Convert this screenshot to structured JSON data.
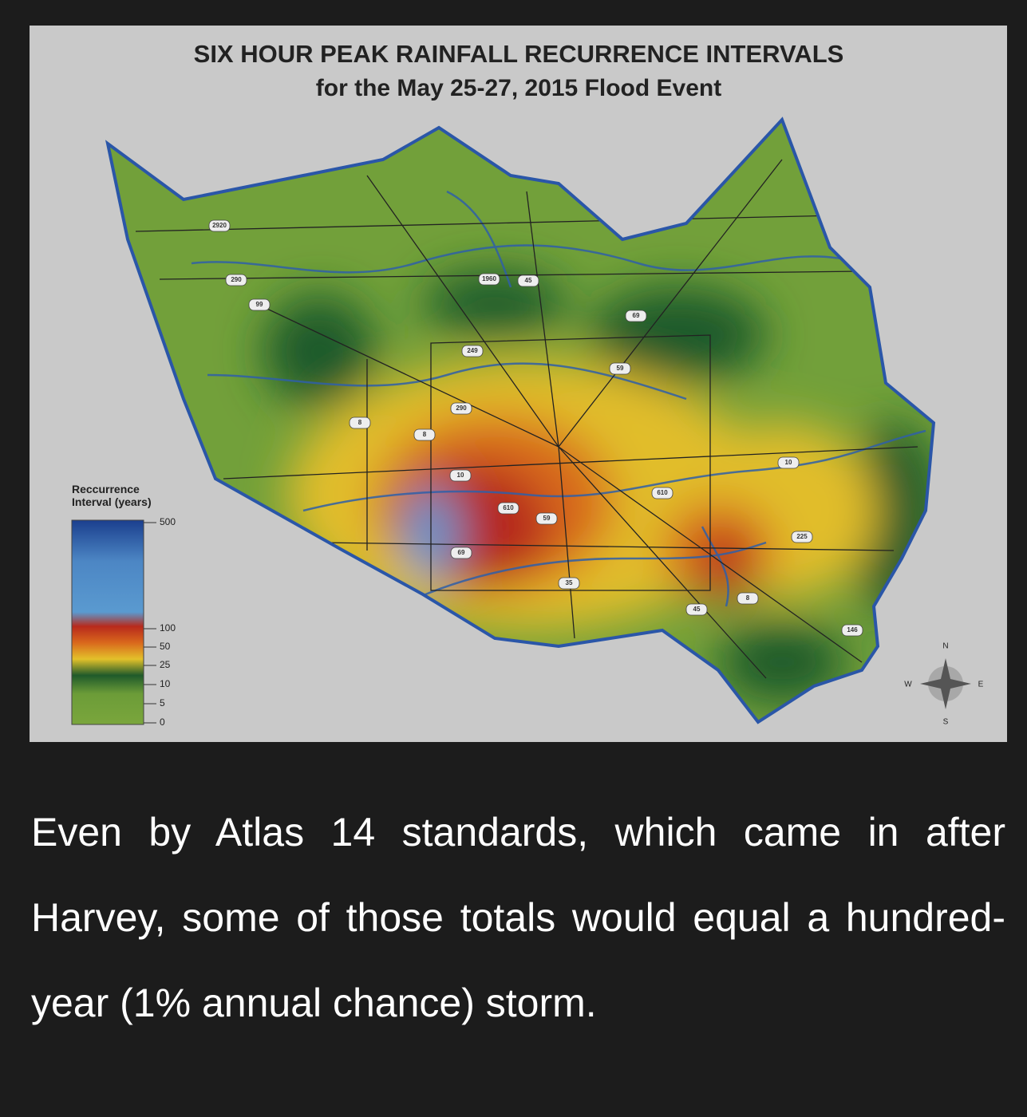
{
  "map": {
    "title": "SIX HOUR PEAK RAINFALL RECURRENCE INTERVALS",
    "subtitle": "for the May 25-27, 2015 Flood Event",
    "legend": {
      "title": "Reccurrence\nInterval (years)",
      "ticks": [
        "500",
        "100",
        "50",
        "25",
        "10",
        "5",
        "0"
      ]
    },
    "compass": {
      "n": "N",
      "s": "S",
      "e": "E",
      "w": "W"
    },
    "highways": [
      "2920",
      "290",
      "99",
      "1960",
      "45",
      "69",
      "249",
      "59",
      "290",
      "8",
      "8",
      "10",
      "610",
      "59",
      "69",
      "35",
      "45",
      "8",
      "610",
      "10",
      "225",
      "146"
    ]
  },
  "caption": "Even by Atlas 14 standards, which came in after Harvey, some of those totals would equal a hundred-year (1% annual chance) storm."
}
